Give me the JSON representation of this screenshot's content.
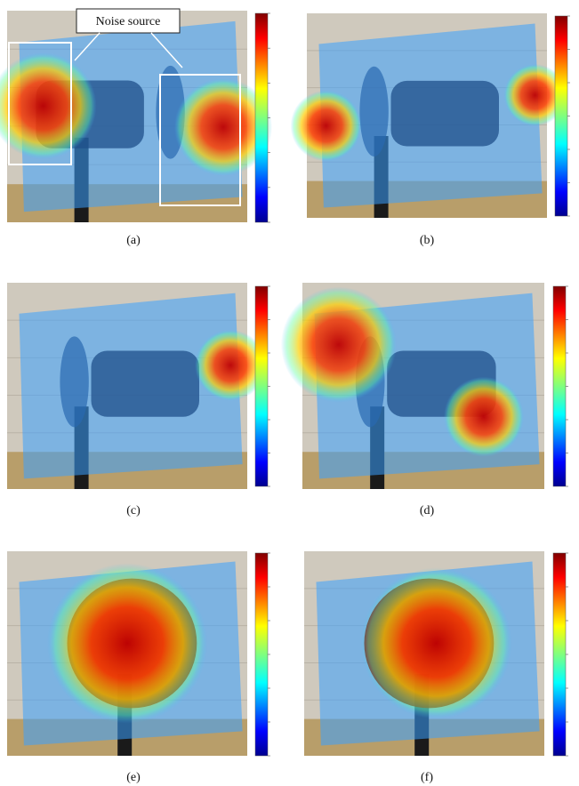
{
  "callout": "Noise source",
  "panels": [
    {
      "label": "(a)"
    },
    {
      "label": "(b)"
    },
    {
      "label": "(c)"
    },
    {
      "label": "(d)"
    },
    {
      "label": "(e)"
    },
    {
      "label": "(f)"
    }
  ]
}
